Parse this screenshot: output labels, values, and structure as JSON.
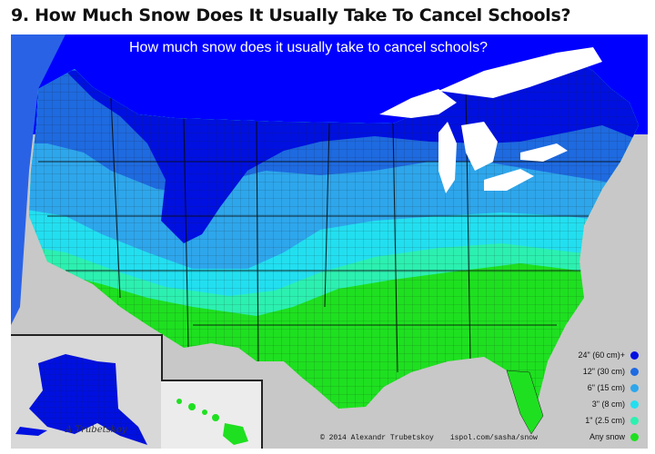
{
  "heading": "9. How Much Snow Does It Usually Take To Cancel Schools?",
  "map": {
    "title": "How much snow does it usually take to cancel schools?",
    "credit": "© 2014 Alexandr Trubetskoy",
    "credit_url": "ispol.com/sasha/snow",
    "signature_text": "A.Trubetskoy"
  },
  "legend": [
    {
      "label": "24\" (60 cm)+",
      "color": "#0010e0"
    },
    {
      "label": "12\" (30 cm)",
      "color": "#1e6ae0"
    },
    {
      "label": "6\" (15 cm)",
      "color": "#2ea6ec"
    },
    {
      "label": "3\" (8 cm)",
      "color": "#22dff0"
    },
    {
      "label": "1\" (2.5 cm)",
      "color": "#2cf0b0"
    },
    {
      "label": "Any snow",
      "color": "#1ee020"
    }
  ],
  "colors": {
    "canada_background": "#0000ff",
    "lakes": "#ffffff",
    "mexico": "#c8c8c8",
    "county_borders": "#1a1a1a"
  }
}
